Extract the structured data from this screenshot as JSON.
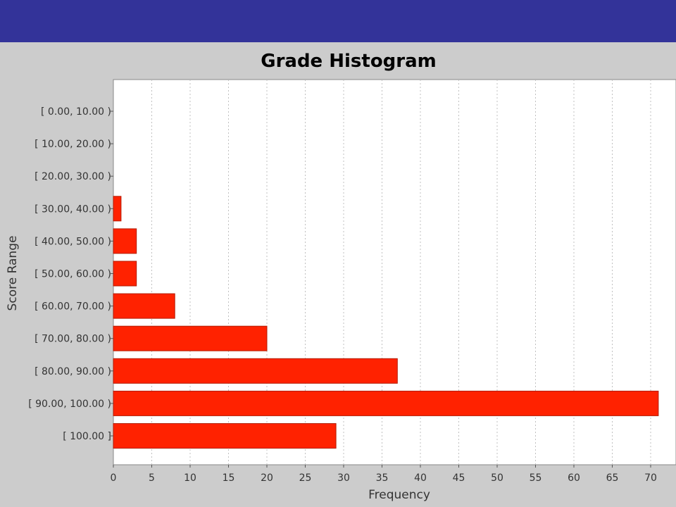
{
  "colors": {
    "banner": "#333399",
    "background": "#cccccc",
    "plot_background": "#ffffff",
    "bar_fill": "#ff2200",
    "bar_stroke": "#b31a00",
    "gridline": "#c0c0c0"
  },
  "chart_data": {
    "type": "bar",
    "orientation": "horizontal",
    "title": "Grade Histogram",
    "xlabel": "Frequency",
    "ylabel": "Score Range",
    "categories": [
      "[ 0.00, 10.00 )",
      "[ 10.00, 20.00 )",
      "[ 20.00, 30.00 )",
      "[ 30.00, 40.00 )",
      "[ 40.00, 50.00 )",
      "[ 50.00, 60.00 )",
      "[ 60.00, 70.00 )",
      "[ 70.00, 80.00 )",
      "[ 80.00, 90.00 )",
      "[ 90.00, 100.00 )",
      "[ 100.00 ]"
    ],
    "values": [
      0,
      0,
      0,
      1,
      3,
      3,
      8,
      20,
      37,
      71,
      29
    ],
    "xlim": [
      0,
      73
    ],
    "xticks": [
      0,
      5,
      10,
      15,
      20,
      25,
      30,
      35,
      40,
      45,
      50,
      55,
      60,
      65,
      70
    ],
    "grid": "vertical dashed",
    "legend": "none"
  }
}
